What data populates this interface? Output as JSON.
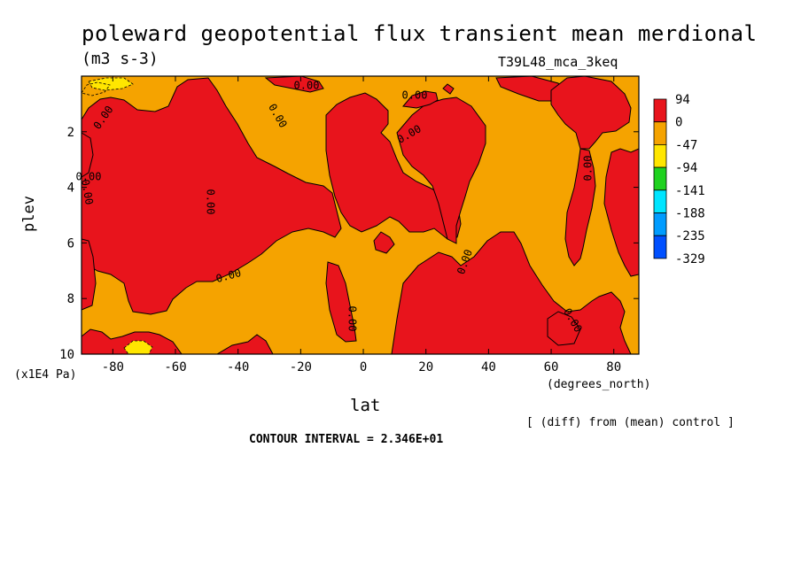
{
  "chart_data": {
    "type": "heatmap",
    "title": "poleward geopotential flux transient mean merdional",
    "units": "(m3 s-3)",
    "run_id": "T39L48_mca_3keq",
    "xlabel": "lat",
    "x_units": "(degrees_north)",
    "ylabel": "plev",
    "y_units": "(x1E4 Pa)",
    "xlim": [
      -90,
      88
    ],
    "ylim": [
      10,
      0
    ],
    "x_ticks": [
      -80,
      -60,
      -40,
      -20,
      0,
      20,
      40,
      60,
      80
    ],
    "y_ticks": [
      2,
      4,
      6,
      8,
      10
    ],
    "note": "[ (diff) from (mean) control ]",
    "contour_interval": "CONTOUR INTERVAL = 2.346E+01",
    "contour_labels": [
      "0.00",
      "0.00",
      "0.00",
      "0.00",
      "0.00",
      "0.00",
      "0.00",
      "0.00",
      "0.00",
      "0.00",
      "0.00",
      "0.00",
      "0.00"
    ],
    "legend": {
      "labels": [
        "94",
        "0",
        "-47",
        "-94",
        "-141",
        "-188",
        "-235",
        "-329"
      ],
      "colors": [
        "#e8141c",
        "#f5a300",
        "#ffe600",
        "#1fd21f",
        "#00e5ff",
        "#009cff",
        "#0050ff"
      ]
    },
    "regions": [
      {
        "value": "positive",
        "color": "#e8141c"
      },
      {
        "value": "negative",
        "color": "#f5a300"
      },
      {
        "value": "strong-negative",
        "color": "#ffe600"
      }
    ]
  }
}
